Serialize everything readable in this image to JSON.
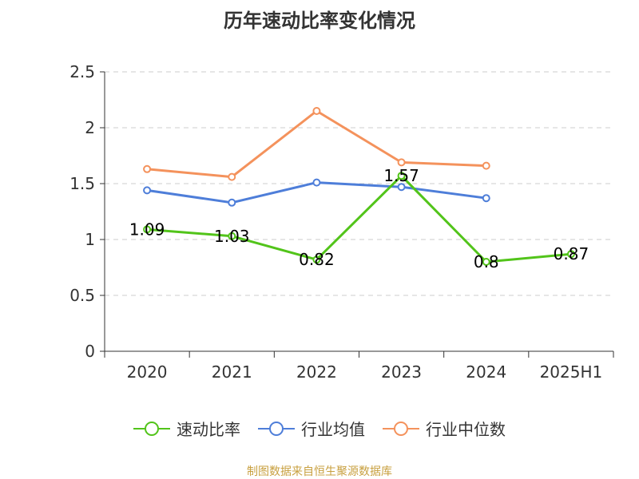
{
  "chart_data": {
    "type": "line",
    "title": "历年速动比率变化情况",
    "categories": [
      "2020",
      "2021",
      "2022",
      "2023",
      "2024",
      "2025H1"
    ],
    "ylim": [
      0,
      2.5
    ],
    "yticks": [
      "0",
      "0.5",
      "1",
      "1.5",
      "2",
      "2.5"
    ],
    "grid": true,
    "legend_position": "bottom",
    "series": [
      {
        "name": "速动比率",
        "color": "#52c41a",
        "values": [
          1.09,
          1.03,
          0.82,
          1.57,
          0.8,
          0.87
        ],
        "labels": [
          "1.09",
          "1.03",
          "0.82",
          "1.57",
          "0.8",
          "0.87"
        ]
      },
      {
        "name": "行业均值",
        "color": "#4e7ed9",
        "values": [
          1.44,
          1.33,
          1.51,
          1.47,
          1.37,
          null
        ]
      },
      {
        "name": "行业中位数",
        "color": "#f4925c",
        "values": [
          1.63,
          1.56,
          2.15,
          1.69,
          1.66,
          null
        ]
      }
    ]
  },
  "source_text": "制图数据来自恒生聚源数据库"
}
